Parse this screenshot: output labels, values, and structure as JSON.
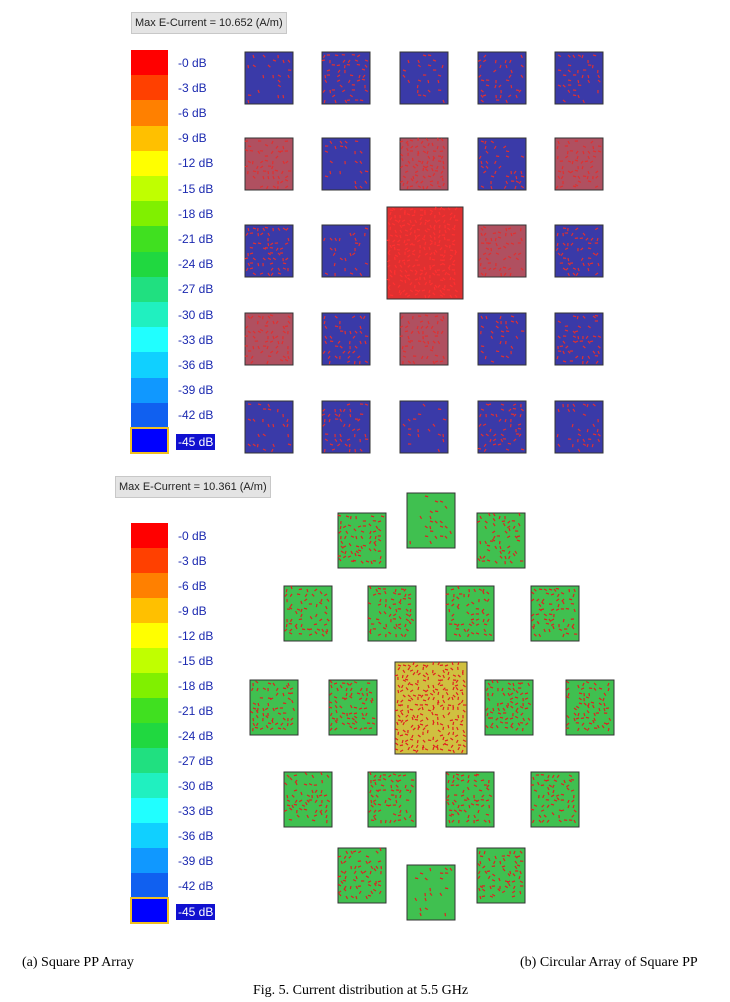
{
  "panel_a": {
    "max_label": "Max E-Current = 10.652 (A/m)",
    "caption": "(a) Square PP Array"
  },
  "panel_b": {
    "max_label": "Max E-Current = 10.361 (A/m)",
    "caption": "(b) Circular Array of Square PP"
  },
  "figure_caption": "Fig. 5. Current distribution at 5.5 GHz",
  "scale_labels": [
    "-0 dB",
    "-3 dB",
    "-6 dB",
    "-9 dB",
    "-12 dB",
    "-15 dB",
    "-18 dB",
    "-21 dB",
    "-24 dB",
    "-27 dB",
    "-30 dB",
    "-33 dB",
    "-36 dB",
    "-39 dB",
    "-42 dB",
    "-45 dB"
  ],
  "scale_colors": [
    "#ff0000",
    "#ff4000",
    "#ff8000",
    "#ffc000",
    "#ffff00",
    "#c0ff00",
    "#80f000",
    "#40e020",
    "#20d840",
    "#20e080",
    "#20f0c0",
    "#20ffff",
    "#10d0ff",
    "#1098ff",
    "#1060f0",
    "#0000ff"
  ],
  "colors": {
    "patch_blue_bg": "#3a3aa8",
    "patch_red": "#e03030",
    "patch_green_bg": "#40c050",
    "patch_arrow_red": "#e02020"
  }
}
